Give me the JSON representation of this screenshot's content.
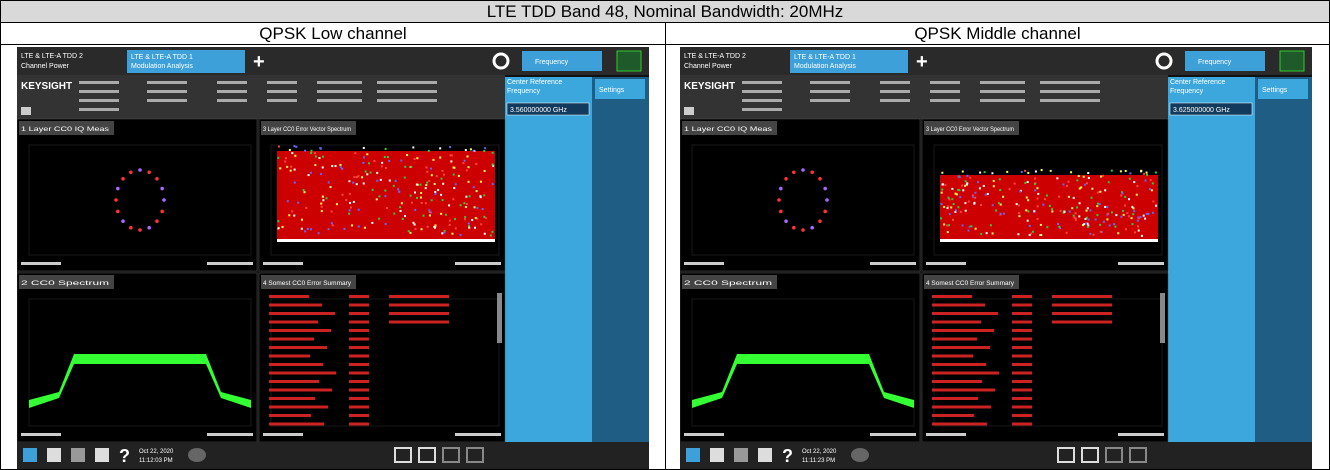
{
  "header": {
    "title": "LTE TDD Band 48, Nominal Bandwidth: 20MHz"
  },
  "columns": [
    {
      "heading": "QPSK Low channel",
      "screen": {
        "app_name": "LTE & LTE-A TDD 2",
        "app_mode": "Channel Power",
        "tab_name": "LTE & LTE-A TDD 1",
        "tab_mode": "Modulation Analysis",
        "brand": "KEYSIGHT",
        "menu": "Frequency",
        "settings": "Settings",
        "ref_label": "Center Reference Frequency",
        "ref_value": "3.560000000 GHz",
        "windows": [
          "1 Layer CC0 IQ Meas",
          "3 Layer CC0 Error Vector Spectrum",
          "2 CC0 Spectrum",
          "4 Somest CC0 Error Summary"
        ],
        "date": "Oct 22, 2020",
        "time": "11:12:03 PM"
      }
    },
    {
      "heading": "QPSK Middle channel",
      "screen": {
        "app_name": "LTE & LTE-A TDD 2",
        "app_mode": "Channel Power",
        "tab_name": "LTE & LTE-A TDD 1",
        "tab_mode": "Modulation Analysis",
        "brand": "KEYSIGHT",
        "menu": "Frequency",
        "settings": "Settings",
        "ref_label": "Center Reference Frequency",
        "ref_value": "3.625000000 GHz",
        "windows": [
          "1 Layer CC0 IQ Meas",
          "3 Layer CC0 Error Vector Spectrum",
          "2 CC0 Spectrum",
          "4 Somest CC0 Error Summary"
        ],
        "date": "Oct 22, 2020",
        "time": "11:11:23 PM"
      }
    }
  ]
}
